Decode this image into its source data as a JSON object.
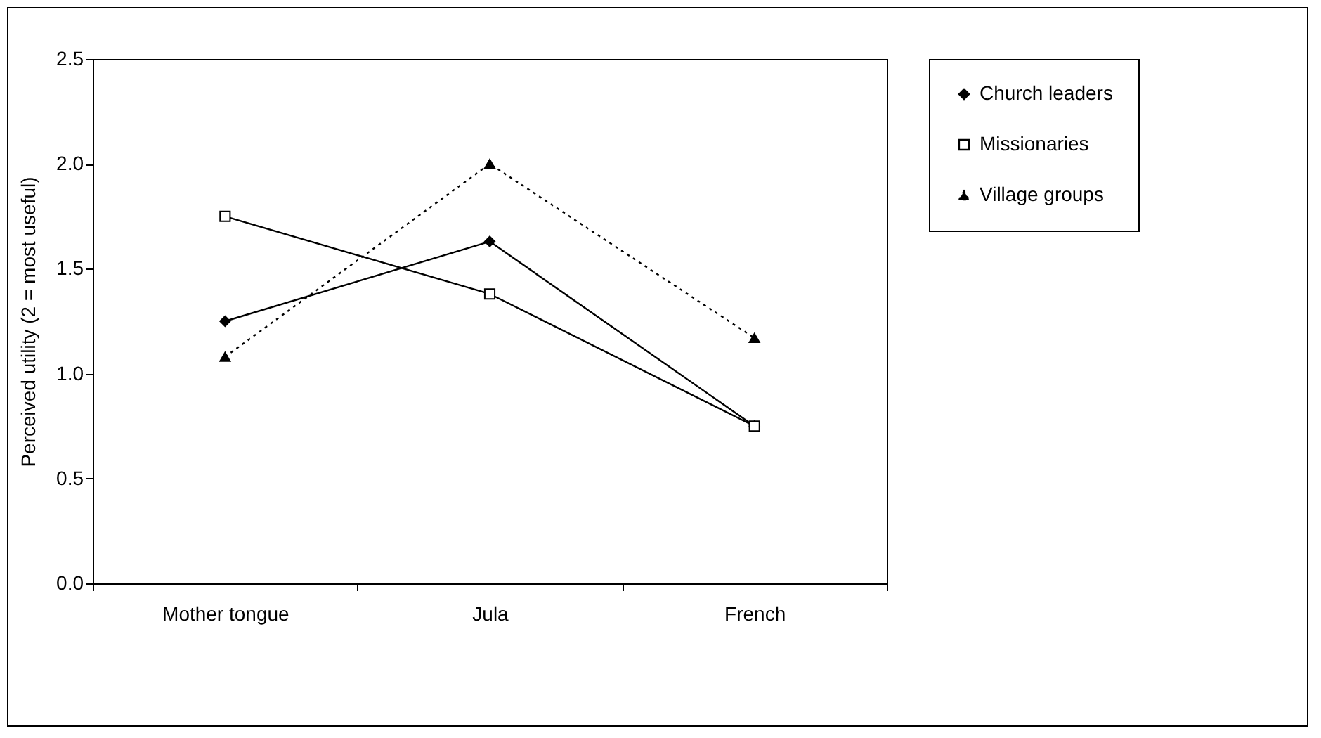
{
  "chart_data": {
    "type": "line",
    "ylabel": "Perceived utility (2 = most useful)",
    "categories": [
      "Mother tongue",
      "Jula",
      "French"
    ],
    "series": [
      {
        "name": "Church leaders",
        "color": "#000000",
        "values": [
          1.25,
          1.63,
          0.75
        ],
        "marker": "diamond",
        "line_style": "solid"
      },
      {
        "name": "Missionaries",
        "color": "#000000",
        "values": [
          1.75,
          1.38,
          0.75
        ],
        "marker": "square",
        "line_style": "solid"
      },
      {
        "name": "Village groups",
        "color": "#000000",
        "values": [
          1.08,
          2.0,
          1.17
        ],
        "marker": "triangle",
        "line_style": "dotted"
      }
    ],
    "ylim": [
      0,
      2.5
    ],
    "yticks": [
      {
        "value": 0,
        "label": "0.0"
      },
      {
        "value": 0.5,
        "label": "0.5"
      },
      {
        "value": 1,
        "label": "1.0"
      },
      {
        "value": 1.5,
        "label": "1.5"
      },
      {
        "value": 2,
        "label": "2.0"
      },
      {
        "value": 2.5,
        "label": "2.5"
      }
    ],
    "grid": false,
    "legend": "right"
  }
}
